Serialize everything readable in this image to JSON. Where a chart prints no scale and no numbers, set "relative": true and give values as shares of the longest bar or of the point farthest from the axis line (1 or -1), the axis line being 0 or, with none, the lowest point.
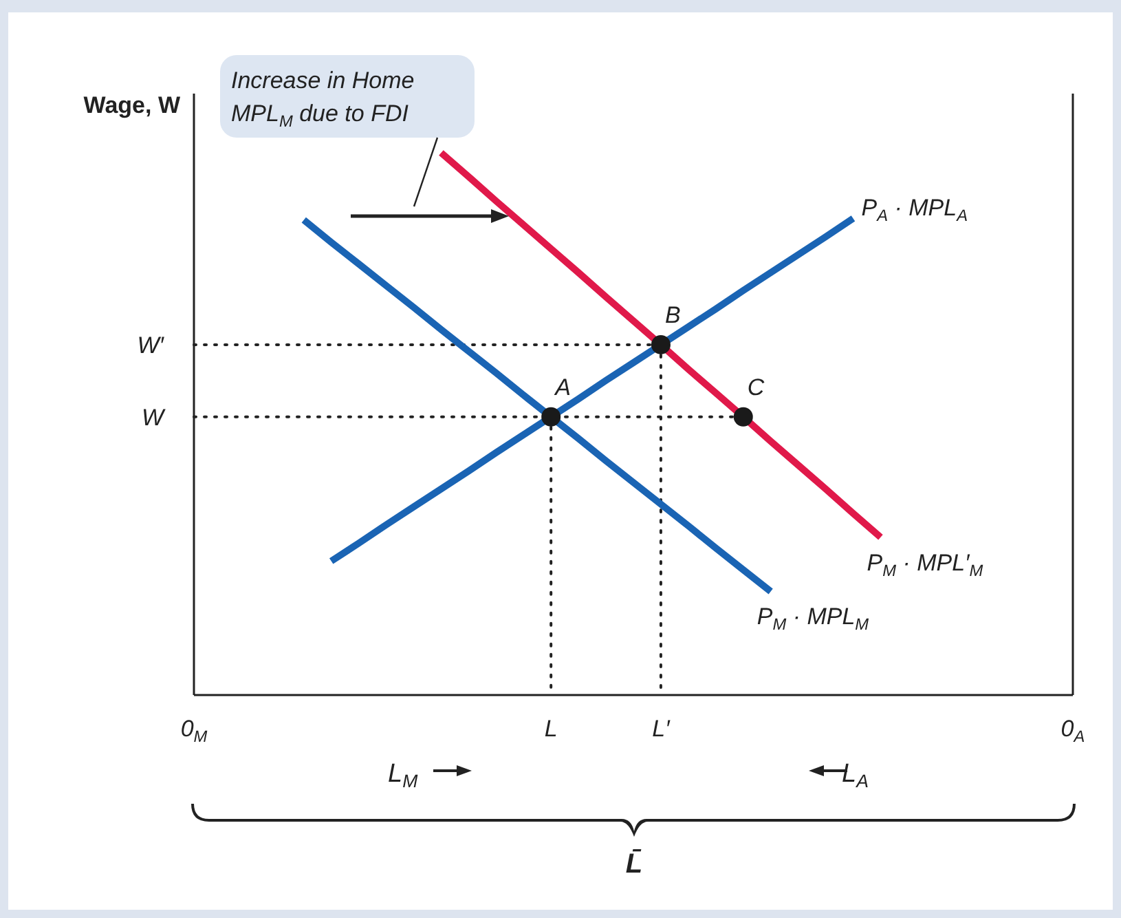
{
  "chart_data": {
    "type": "line",
    "relative": true,
    "ylabel": "Wage, W",
    "xlabel": "L̄",
    "categories": [
      "0$_{M}$",
      null,
      null,
      null,
      null,
      null,
      null,
      null,
      null,
      null,
      null,
      null,
      null,
      "L",
      null,
      null,
      null,
      "L′",
      null,
      null,
      null,
      null,
      null,
      null,
      null,
      null,
      null,
      null,
      null,
      null,
      null,
      null,
      "0$_{A}$"
    ],
    "series": [
      {
        "name": "P$_{M}$ · MPL$_{M}$",
        "color": "#1a64b4",
        "values": [
          null,
          null,
          null,
          null,
          0.876,
          0.835,
          0.795,
          0.755,
          0.715,
          0.674,
          0.634,
          0.594,
          0.553,
          0.513,
          0.473,
          0.432,
          0.392,
          0.352,
          0.312,
          0.271,
          0.231,
          0.191,
          null,
          null,
          null,
          null,
          null,
          null,
          null,
          null,
          null,
          null,
          null
        ]
      },
      {
        "name": "P$_{A}$ · MPL$_{A}$",
        "color": "#1a64b4",
        "values": [
          null,
          null,
          null,
          null,
          null,
          0.247,
          0.28,
          0.314,
          0.347,
          0.38,
          0.413,
          0.447,
          0.48,
          0.513,
          0.546,
          0.58,
          0.613,
          0.646,
          0.679,
          0.712,
          0.746,
          0.779,
          0.812,
          0.845,
          0.879,
          null,
          null,
          null,
          null,
          null,
          null,
          null,
          null
        ]
      },
      {
        "name": "P$_{M}$ · MPL′$_{M}$",
        "color": "#e0194a",
        "values": [
          null,
          null,
          null,
          null,
          null,
          null,
          null,
          null,
          null,
          1,
          0.956,
          0.911,
          0.867,
          0.823,
          0.779,
          0.734,
          0.69,
          0.646,
          0.601,
          0.557,
          0.513,
          0.468,
          0.424,
          0.38,
          0.335,
          0.291,
          null,
          null,
          null,
          null,
          null,
          null,
          null
        ]
      },
      {
        "type": "scatter",
        "marker": "circle",
        "color": "#1a1a1a",
        "values": [
          null,
          null,
          null,
          null,
          null,
          null,
          null,
          null,
          null,
          null,
          null,
          null,
          null,
          0.513,
          null,
          null,
          null,
          0.646,
          null,
          null,
          0.513,
          null,
          null,
          null,
          null,
          null,
          null,
          null,
          null,
          null,
          null,
          null,
          null
        ]
      }
    ],
    "annotations": [
      "A",
      "B",
      "C",
      "W",
      "W′",
      "Increase in Home MPL$_{M}$ due to FDI",
      "L$_{M}$",
      "L$_{A}$"
    ]
  }
}
